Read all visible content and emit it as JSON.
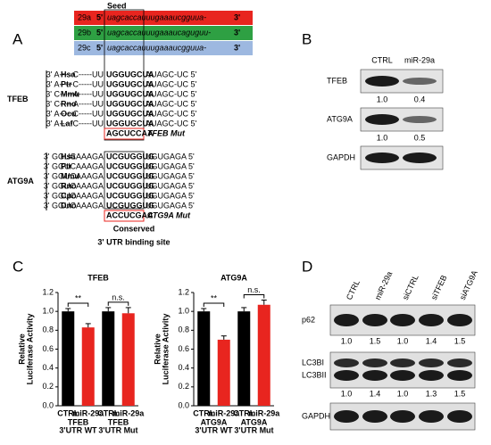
{
  "panel_a": {
    "label": "A",
    "seed_label": "Seed",
    "mirnas": [
      {
        "name": "29a",
        "five": "5'",
        "seq": "uagcaccauuugaaaucgguua-",
        "three": "3'",
        "color": "#e8251f"
      },
      {
        "name": "29b",
        "five": "5'",
        "seq": "uagcaccauuugaaaucaguguu-",
        "three": "3'",
        "color": "#2ea043"
      },
      {
        "name": "29c",
        "five": "5'",
        "seq": "uagcaccauuugaaaucgguua-",
        "three": "3'",
        "color": "#9db8e0"
      }
    ],
    "groups": [
      {
        "gene": "TFEB",
        "rows": [
          {
            "species": "Hsa",
            "left": "3' A-----C-----UU",
            "seed": "UGGUGCUA",
            "right": "AUAGC-UC 5'"
          },
          {
            "species": "Ptr",
            "left": "3' A-----C-----UU",
            "seed": "UGGUGCUA",
            "right": "AUAGC-UC 5'"
          },
          {
            "species": "Mmu",
            "left": "3' C-----A-----UU",
            "seed": "UGGUGCUA",
            "right": "AUAGC-UC 5'"
          },
          {
            "species": "Rno",
            "left": "3' C-----A-----UU",
            "seed": "UGGUGCUA",
            "right": "AUAGC-UC 5'"
          },
          {
            "species": "Ocu",
            "left": "3' A-----C-----UU",
            "seed": "UGGUGCUA",
            "right": "AUAGC-UC 5'"
          },
          {
            "species": "Laf",
            "left": "3' A-----C-----UU",
            "seed": "UGGUGCUA",
            "right": "AUAGC-UC 5'"
          }
        ],
        "mut_seq": "AGCUCCAA",
        "mut_label": "TFEB Mut"
      },
      {
        "gene": "ATG9A",
        "rows": [
          {
            "species": "Hsa",
            "left": "3' GGUCAAAGA",
            "seed": "UCGUGGUG",
            "right": "UGUGAGA 5'"
          },
          {
            "species": "Ptr",
            "left": "3' GGUCAAAGA",
            "seed": "UCGUGGUG",
            "right": "UGUGAGA 5'"
          },
          {
            "species": "Mmu",
            "left": "3' GGUCAAAGA",
            "seed": "UCGUGGUG",
            "right": "UGUGAGA 5'"
          },
          {
            "species": "Rno",
            "left": "3' GGUCAAAGA",
            "seed": "UCGUGGUG",
            "right": "UGUGAGA 5'"
          },
          {
            "species": "Cpo",
            "left": "3' GGUCAAAGA",
            "seed": "UCGUGGUG",
            "right": "UGUGAGA 5'"
          },
          {
            "species": "Dno",
            "left": "3' GGUCAAAGA",
            "seed": "UCGUGGUG",
            "right": "UGUGAGA 5'"
          }
        ],
        "mut_seq": "ACCUCGAC",
        "mut_label": "ATG9A Mut"
      }
    ],
    "caption": [
      "Conserved",
      "3' UTR binding site"
    ]
  },
  "panel_b": {
    "label": "B",
    "lanes": [
      "CTRL",
      "miR-29a"
    ],
    "blots": [
      {
        "name": "TFEB",
        "quant": [
          "1.0",
          "0.4"
        ]
      },
      {
        "name": "ATG9A",
        "quant": [
          "1.0",
          "0.5"
        ]
      },
      {
        "name": "GAPDH"
      }
    ]
  },
  "panel_c": {
    "label": "C",
    "charts": [
      {
        "type": "bar",
        "title": "TFEB",
        "ylabel": [
          "Relative",
          "Luciferase Activity"
        ],
        "categories": [
          "CTRL",
          "miR-29a",
          "CTRL",
          "miR-29a"
        ],
        "values": [
          1.0,
          0.83,
          1.0,
          0.98
        ],
        "errors": [
          0.03,
          0.04,
          0.04,
          0.06
        ],
        "colors": [
          "#000000",
          "#e8251f",
          "#000000",
          "#e8251f"
        ],
        "groups": [
          [
            "TFEB",
            "3'UTR WT"
          ],
          [
            "TFEB",
            "3'UTR Mut"
          ]
        ],
        "significance": [
          "**",
          "n.s."
        ],
        "ylim": [
          0,
          1.2
        ],
        "yticks": [
          {
            "value": 0,
            "label": "0.0"
          },
          0.2,
          0.4,
          0.6,
          0.8,
          {
            "value": 1,
            "label": "1.0"
          },
          1.2
        ]
      },
      {
        "type": "bar",
        "title": "ATG9A",
        "ylabel": [
          "Relative",
          "Luciferase Activity"
        ],
        "categories": [
          "CTRL",
          "miR-29a",
          "CTRL",
          "miR-29a"
        ],
        "values": [
          1.0,
          0.7,
          1.0,
          1.07
        ],
        "errors": [
          0.03,
          0.04,
          0.04,
          0.05
        ],
        "colors": [
          "#000000",
          "#e8251f",
          "#000000",
          "#e8251f"
        ],
        "groups": [
          [
            "ATG9A",
            "3'UTR WT"
          ],
          [
            "ATG9A",
            "3'UTR Mut"
          ]
        ],
        "significance": [
          "**",
          "n.s."
        ],
        "ylim": [
          0,
          1.2
        ],
        "yticks": [
          {
            "value": 0,
            "label": "0.0"
          },
          0.2,
          0.4,
          0.6,
          0.8,
          {
            "value": 1,
            "label": "1.0"
          },
          1.2
        ]
      }
    ]
  },
  "panel_d": {
    "label": "D",
    "lanes": [
      "CTRL",
      "miR-29a",
      "siCTRL",
      "siTFEB",
      "siATG9A"
    ],
    "blots": [
      {
        "names": [
          "p62"
        ],
        "quant": [
          "1.0",
          "1.5",
          "1.0",
          "1.4",
          "1.5"
        ]
      },
      {
        "names": [
          "LC3BI",
          "LC3BII"
        ],
        "quant": [
          "1.0",
          "1.4",
          "1.0",
          "1.3",
          "1.5"
        ]
      },
      {
        "names": [
          "GAPDH"
        ]
      }
    ]
  }
}
